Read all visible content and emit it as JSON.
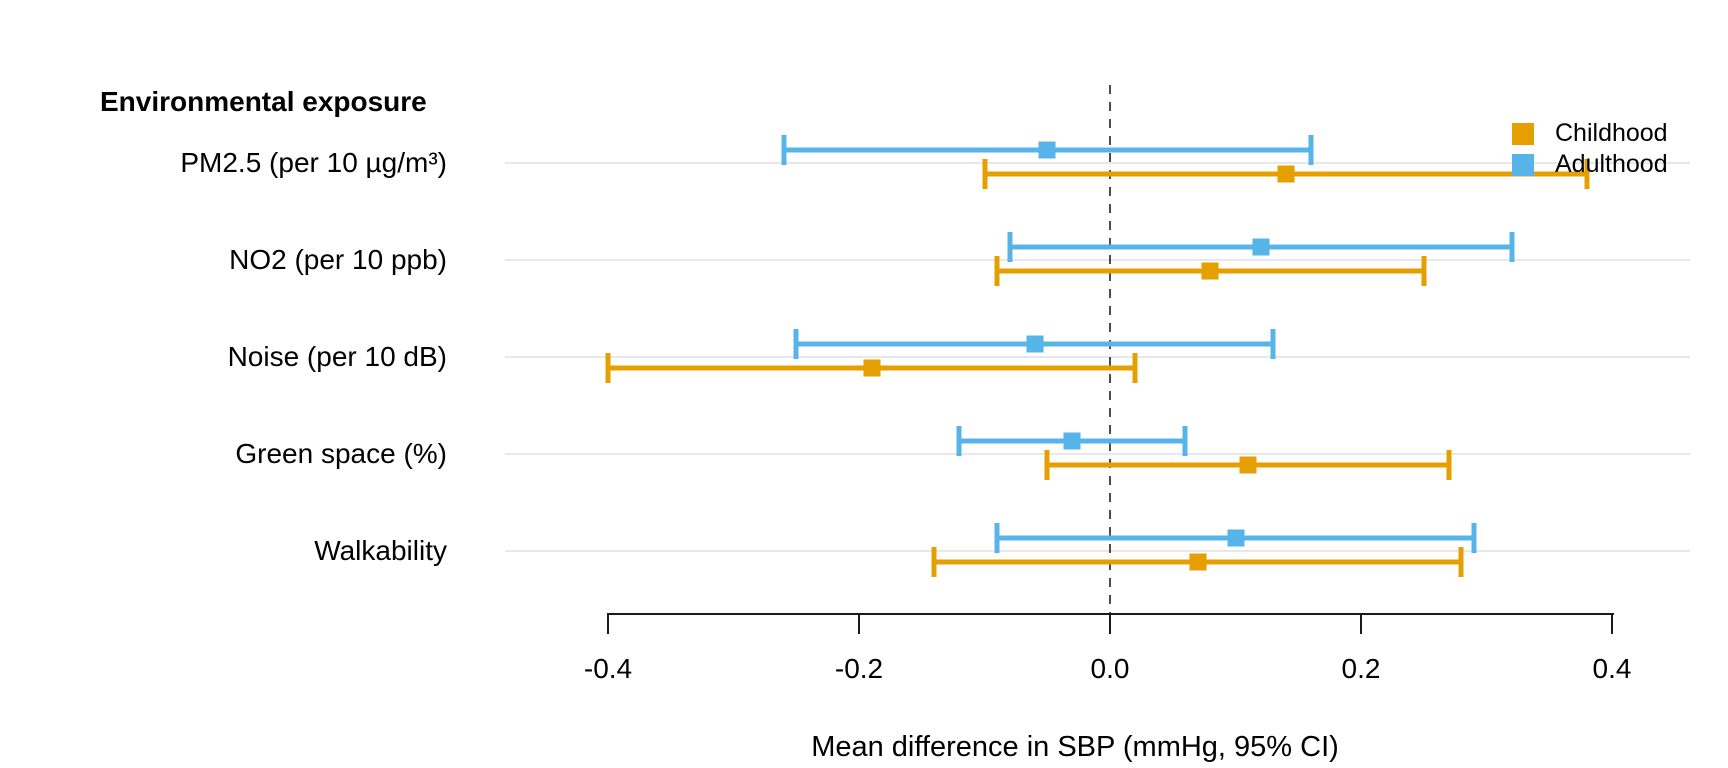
{
  "chart_data": {
    "type": "scatter",
    "variant": "forest-plot",
    "header_label": "Environmental exposure",
    "xlabel": "Mean difference in SBP (mmHg, 95% CI)",
    "xlim": [
      -0.4,
      0.4
    ],
    "x_ticks": [
      -0.4,
      -0.2,
      0.0,
      0.2,
      0.4
    ],
    "x_tick_labels": [
      "-0.4",
      "-0.2",
      "0.0",
      "0.2",
      "0.4"
    ],
    "reference_line_x": 0.0,
    "grid": "horizontal-light",
    "legend_position": "top-right",
    "categories": [
      "PM2.5 (per 10 µg/m³)",
      "NO2 (per 10 ppb)",
      "Noise (per 10 dB)",
      "Green space (%)",
      "Walkability"
    ],
    "series": [
      {
        "name": "Childhood",
        "color": "#E69F00",
        "values": [
          {
            "estimate": 0.14,
            "ci_low": -0.1,
            "ci_high": 0.38
          },
          {
            "estimate": 0.08,
            "ci_low": -0.09,
            "ci_high": 0.25
          },
          {
            "estimate": -0.19,
            "ci_low": -0.4,
            "ci_high": 0.02
          },
          {
            "estimate": 0.11,
            "ci_low": -0.05,
            "ci_high": 0.27
          },
          {
            "estimate": 0.07,
            "ci_low": -0.14,
            "ci_high": 0.28
          }
        ]
      },
      {
        "name": "Adulthood",
        "color": "#56B4E9",
        "values": [
          {
            "estimate": -0.05,
            "ci_low": -0.26,
            "ci_high": 0.16
          },
          {
            "estimate": 0.12,
            "ci_low": -0.08,
            "ci_high": 0.32
          },
          {
            "estimate": -0.06,
            "ci_low": -0.25,
            "ci_high": 0.13
          },
          {
            "estimate": -0.03,
            "ci_low": -0.12,
            "ci_high": 0.06
          },
          {
            "estimate": 0.1,
            "ci_low": -0.09,
            "ci_high": 0.29
          }
        ]
      }
    ],
    "colors": {
      "childhood_orange": "#E69F00",
      "adulthood_blue": "#56B4E9",
      "gridline_gray": "#e8e8e8",
      "reference_dash_gray": "#4d4d4d",
      "axis_black": "#1a1a1a"
    }
  }
}
